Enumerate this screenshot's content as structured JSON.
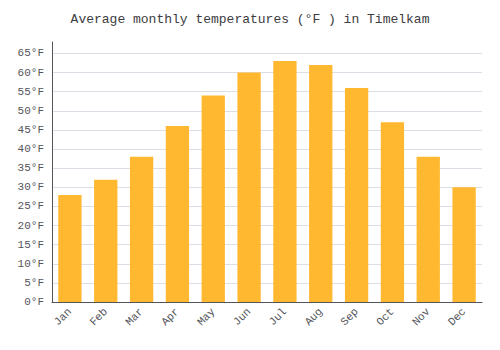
{
  "chart_data": {
    "type": "bar",
    "title": "Average monthly temperatures (°F ) in Timelkam",
    "categories": [
      "Jan",
      "Feb",
      "Mar",
      "Apr",
      "May",
      "Jun",
      "Jul",
      "Aug",
      "Sep",
      "Oct",
      "Nov",
      "Dec"
    ],
    "values": [
      28,
      32,
      38,
      46,
      54,
      60,
      63,
      62,
      56,
      47,
      38,
      30
    ],
    "color": "#FFB830",
    "ylim": [
      0,
      68
    ],
    "yticks": [
      {
        "value": 0,
        "label": "0°F"
      },
      {
        "value": 5,
        "label": "5°F"
      },
      {
        "value": 10,
        "label": "10°F"
      },
      {
        "value": 15,
        "label": "15°F"
      },
      {
        "value": 20,
        "label": "20°F"
      },
      {
        "value": 25,
        "label": "25°F"
      },
      {
        "value": 30,
        "label": "30°F"
      },
      {
        "value": 35,
        "label": "35°F"
      },
      {
        "value": 40,
        "label": "40°F"
      },
      {
        "value": 45,
        "label": "45°F"
      },
      {
        "value": 50,
        "label": "50°F"
      },
      {
        "value": 55,
        "label": "55°F"
      },
      {
        "value": 60,
        "label": "60°F"
      },
      {
        "value": 65,
        "label": "65°F"
      }
    ],
    "grid": true
  }
}
